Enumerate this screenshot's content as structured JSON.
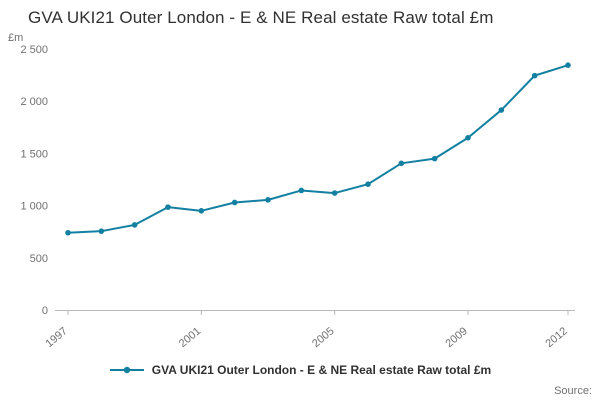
{
  "header": {
    "title": "GVA UKI21 Outer London - E & NE Real estate Raw total £m",
    "unit_label": "£m"
  },
  "legend": {
    "label": "GVA UKI21 Outer London - E & NE Real estate Raw total £m"
  },
  "source": {
    "label": "Source:"
  },
  "chart_data": {
    "type": "line",
    "title": "GVA UKI21 Outer London - E & NE Real estate Raw total £m",
    "xlabel": "",
    "ylabel": "£m",
    "x": [
      1997,
      1998,
      1999,
      2000,
      2001,
      2002,
      2003,
      2004,
      2005,
      2006,
      2007,
      2008,
      2009,
      2010,
      2011,
      2012
    ],
    "values": [
      740,
      755,
      815,
      985,
      950,
      1030,
      1055,
      1145,
      1120,
      1205,
      1405,
      1450,
      1650,
      1915,
      2245,
      2345
    ],
    "ylim": [
      0,
      2500
    ],
    "y_ticks": [
      {
        "value": 0,
        "label": "0"
      },
      {
        "value": 500,
        "label": "500"
      },
      {
        "value": 1000,
        "label": "1 000"
      },
      {
        "value": 1500,
        "label": "1 500"
      },
      {
        "value": 2000,
        "label": "2 000"
      },
      {
        "value": 2500,
        "label": "2 500"
      }
    ],
    "x_ticks": [
      {
        "year": 1997,
        "label": "1997"
      },
      {
        "year": 2001,
        "label": "2001"
      },
      {
        "year": 2005,
        "label": "2005"
      },
      {
        "year": 2009,
        "label": "2009"
      },
      {
        "year": 2012,
        "label": "2012"
      }
    ],
    "line_color": "#1380a1",
    "axis_color": "#b8b8b8",
    "tick_text_color": "#707070",
    "grid": false,
    "marker": "circle",
    "legend_position": "bottom"
  }
}
